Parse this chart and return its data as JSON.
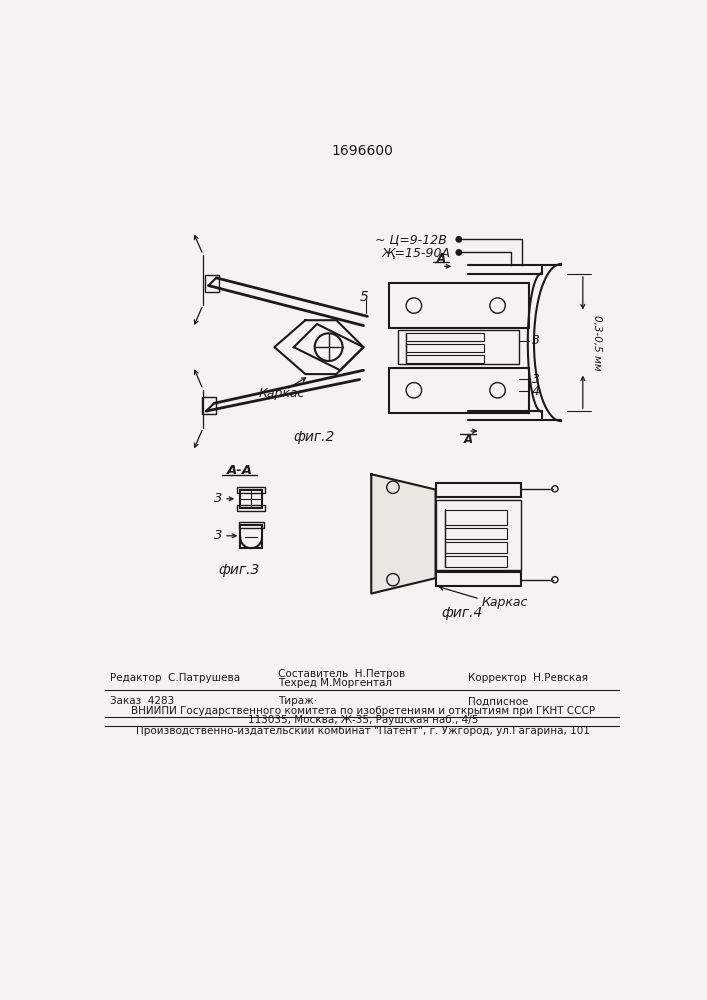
{
  "title": "1696600",
  "bg_color": "#f5f3ef",
  "line_color": "#1a1a1a",
  "fig2_label": "фиг.2",
  "fig3_label": "фиг.3",
  "fig4_label": "фиг.4",
  "aa_label": "A-A",
  "annotation_u": "~ Ц=9-12В",
  "annotation_j": "Җ=15-90А",
  "annotation_dim": "0,3-0,5 мм",
  "label_karkac": "Каркас",
  "label_5": "5",
  "label_3": "3",
  "label_4": "4",
  "label_A": "А",
  "footer_editor": "Редактор  С.Патрушева",
  "footer_composer": "Составитель  Н.Петров",
  "footer_techred": "Техред М.Моргентал",
  "footer_corrector": "Корректор  Н.Ревская",
  "footer_order": "Заказ  4283",
  "footer_tirazh": "Тираж·",
  "footer_podpisnoe": "Подписное",
  "footer_vniipи": "ВНИИПИ Государственного комитета по изобретениям и открытиям при ГКНТ СССР",
  "footer_address": "113035, Москва, Ж-35, Раушская наб., 4/5",
  "footer_patent": "Производственно-издательский комбинат \"Патент\", г. Ужгород, ул.Гагарина, 101"
}
